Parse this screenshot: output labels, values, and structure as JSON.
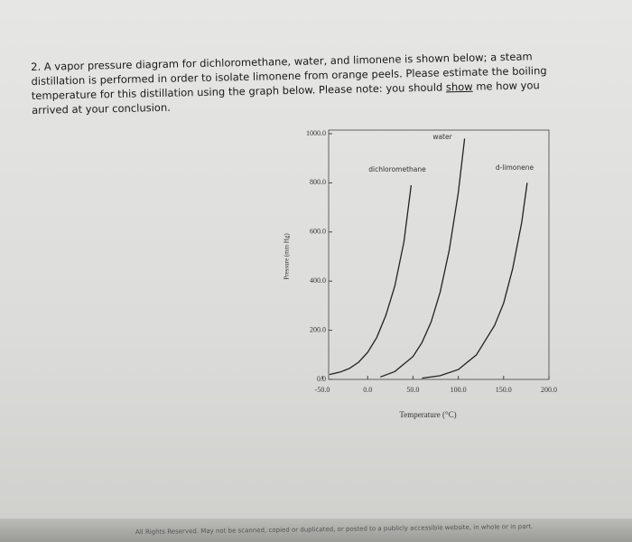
{
  "question": [
    "2. A vapor pressure diagram for dichloromethane, water, and limonene is shown below; a steam distillation is performed in order to isolate limonene from orange peels. Please estimate the boiling temperature for this distillation using the graph below. Please note: you should ",
    "show",
    " me how you arrived at your conclusion."
  ],
  "chart_data": {
    "type": "line",
    "x_label": "Temperature (°C)",
    "y_label": "Pressure (mm Hg)",
    "xlim": [
      -50,
      200
    ],
    "xticks": [
      {
        "value": -50,
        "label": "-50.0"
      },
      {
        "value": 0,
        "label": "0.0"
      },
      {
        "value": 50,
        "label": "50.0"
      },
      {
        "value": 100,
        "label": "100.0"
      },
      {
        "value": 150,
        "label": "150.0"
      },
      {
        "value": 200,
        "label": "200.0"
      }
    ],
    "ylim": [
      0,
      1000
    ],
    "yticks": [
      {
        "value": 0,
        "label": "0.0"
      },
      {
        "value": 200,
        "label": "200.0"
      },
      {
        "value": 400,
        "label": "400.0"
      },
      {
        "value": 600,
        "label": "600.0"
      },
      {
        "value": 800,
        "label": "800.0"
      },
      {
        "value": 1000,
        "label": "1000.0"
      }
    ],
    "series": [
      {
        "name": "dichloromethane",
        "color": "#222222",
        "x": [
          -42,
          -30,
          -20,
          -10,
          0,
          10,
          20,
          30,
          40,
          48
        ],
        "values": [
          20,
          30,
          45,
          70,
          110,
          170,
          260,
          380,
          560,
          790
        ]
      },
      {
        "name": "water",
        "color": "#222222",
        "x": [
          14,
          30,
          50,
          60,
          70,
          80,
          90,
          100,
          107
        ],
        "values": [
          10,
          32,
          93,
          150,
          234,
          355,
          526,
          760,
          980
        ]
      },
      {
        "name": "d-limonene",
        "color": "#222222",
        "x": [
          60,
          80,
          100,
          120,
          140,
          150,
          160,
          170,
          176
        ],
        "values": [
          5,
          15,
          40,
          100,
          220,
          310,
          450,
          640,
          800
        ]
      }
    ]
  },
  "footer": "All Rights Reserved. May not be scanned, copied or duplicated, or posted to a publicly accessible website, in whole or in part."
}
